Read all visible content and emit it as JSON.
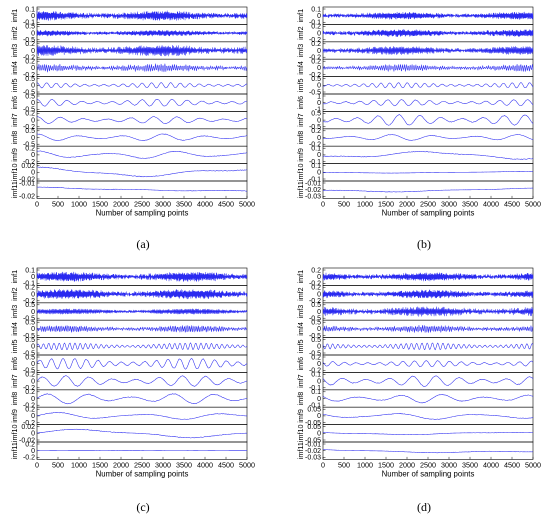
{
  "chart_data": [
    {
      "type": "line",
      "caption": "(a)",
      "xlabel": "Number of sampling points",
      "xlim": [
        0,
        5000
      ],
      "xticks": [
        0,
        500,
        1000,
        1500,
        2000,
        2500,
        3000,
        3500,
        4000,
        4500,
        5000
      ],
      "series": [
        {
          "name": "imf1",
          "yticks": [
            "0.1",
            "0",
            "-0.1"
          ],
          "ylim": [
            -0.1,
            0.1
          ],
          "amplitude": 0.04,
          "periods": 900
        },
        {
          "name": "imf2",
          "yticks": [
            "0.5",
            "0",
            "-0.5"
          ],
          "ylim": [
            -0.5,
            0.5
          ],
          "amplitude": 0.12,
          "periods": 450
        },
        {
          "name": "imf3",
          "yticks": [
            "0.2",
            "0",
            "-0.2"
          ],
          "ylim": [
            -0.2,
            0.2
          ],
          "amplitude": 0.09,
          "periods": 220
        },
        {
          "name": "imf4",
          "yticks": [
            "0.2",
            "0",
            "-0.2"
          ],
          "ylim": [
            -0.2,
            0.2
          ],
          "amplitude": 0.07,
          "periods": 110
        },
        {
          "name": "imf5",
          "yticks": [
            "0.5",
            "0",
            "-0.5"
          ],
          "ylim": [
            -0.5,
            0.5
          ],
          "amplitude": 0.15,
          "periods": 22
        },
        {
          "name": "imf6",
          "yticks": [
            "0.5",
            "0",
            "-0.5"
          ],
          "ylim": [
            -0.5,
            0.5
          ],
          "amplitude": 0.2,
          "periods": 14
        },
        {
          "name": "imf7",
          "yticks": [
            "0.2",
            "0",
            "-0.2"
          ],
          "ylim": [
            -0.2,
            0.2
          ],
          "amplitude": 0.08,
          "periods": 9
        },
        {
          "name": "imf8",
          "yticks": [
            "0.5",
            "0",
            "-0.5"
          ],
          "ylim": [
            -0.5,
            0.5
          ],
          "amplitude": 0.2,
          "periods": 5
        },
        {
          "name": "imf9",
          "yticks": [
            "0.2",
            "0",
            "-0.2"
          ],
          "ylim": [
            -0.2,
            0.2
          ],
          "amplitude": 0.09,
          "periods": 3
        },
        {
          "name": "imf10",
          "yticks": [
            "0.02",
            "0",
            "-0.02"
          ],
          "ylim": [
            -0.02,
            0.02
          ],
          "amplitude": 0.012,
          "periods": 1.1
        },
        {
          "name": "imf11",
          "yticks": [
            "-0.01",
            "-0.02"
          ],
          "ylim": [
            -0.025,
            -0.005
          ],
          "amplitude": 0.003,
          "periods": 0.5,
          "offset": -0.015
        }
      ]
    },
    {
      "type": "line",
      "caption": "(b)",
      "xlabel": "Number of sampling points",
      "xlim": [
        0,
        5000
      ],
      "xticks": [
        0,
        500,
        1000,
        1500,
        2000,
        2500,
        3000,
        3500,
        4000,
        4500,
        5000
      ],
      "series": [
        {
          "name": "imf1",
          "yticks": [
            "0.1",
            "0",
            "-0.1"
          ],
          "ylim": [
            -0.1,
            0.1
          ],
          "amplitude": 0.03,
          "periods": 900
        },
        {
          "name": "imf2",
          "yticks": [
            "0.2",
            "0",
            "-0.2"
          ],
          "ylim": [
            -0.2,
            0.2
          ],
          "amplitude": 0.06,
          "periods": 450
        },
        {
          "name": "imf3",
          "yticks": [
            "0.2",
            "0",
            "-0.2"
          ],
          "ylim": [
            -0.2,
            0.2
          ],
          "amplitude": 0.07,
          "periods": 220
        },
        {
          "name": "imf4",
          "yticks": [
            "0.2",
            "0",
            "-0.2"
          ],
          "ylim": [
            -0.2,
            0.2
          ],
          "amplitude": 0.06,
          "periods": 110
        },
        {
          "name": "imf5",
          "yticks": [
            "0.5",
            "0",
            "-0.5"
          ],
          "ylim": [
            -0.5,
            0.5
          ],
          "amplitude": 0.15,
          "periods": 24
        },
        {
          "name": "imf6",
          "yticks": [
            "1",
            "0",
            "-1"
          ],
          "ylim": [
            -1,
            1
          ],
          "amplitude": 0.35,
          "periods": 15
        },
        {
          "name": "imf7",
          "yticks": [
            "0.5",
            "0",
            "-0.5"
          ],
          "ylim": [
            -0.5,
            0.5
          ],
          "amplitude": 0.3,
          "periods": 10
        },
        {
          "name": "imf8",
          "yticks": [
            "0.2",
            "0",
            "-0.2"
          ],
          "ylim": [
            -0.2,
            0.2
          ],
          "amplitude": 0.07,
          "periods": 5
        },
        {
          "name": "imf9",
          "yticks": [
            "0.1",
            "0",
            "-0.1"
          ],
          "ylim": [
            -0.1,
            0.1
          ],
          "amplitude": 0.05,
          "periods": 1.2
        },
        {
          "name": "imf10",
          "yticks": [
            "0.1",
            "0",
            "-0.1"
          ],
          "ylim": [
            -0.1,
            0.1
          ],
          "amplitude": 0.01,
          "periods": 0.6
        },
        {
          "name": "imf11",
          "yticks": [
            "-0.01",
            "-0.02",
            "-0.03"
          ],
          "ylim": [
            -0.035,
            -0.005
          ],
          "amplitude": 0.004,
          "periods": 0.5,
          "offset": -0.02
        }
      ]
    },
    {
      "type": "line",
      "caption": "(c)",
      "xlabel": "Number of sampling points",
      "xlim": [
        0,
        5000
      ],
      "xticks": [
        0,
        500,
        1000,
        1500,
        2000,
        2500,
        3000,
        3500,
        4000,
        4500,
        5000
      ],
      "series": [
        {
          "name": "imf1",
          "yticks": [
            "0.1",
            "0",
            "-0.1"
          ],
          "ylim": [
            -0.1,
            0.1
          ],
          "amplitude": 0.04,
          "periods": 900
        },
        {
          "name": "imf2",
          "yticks": [
            "0.2",
            "0",
            "-0.2"
          ],
          "ylim": [
            -0.2,
            0.2
          ],
          "amplitude": 0.08,
          "periods": 450
        },
        {
          "name": "imf3",
          "yticks": [
            "0.5",
            "0",
            "-0.5"
          ],
          "ylim": [
            -0.5,
            0.5
          ],
          "amplitude": 0.12,
          "periods": 220
        },
        {
          "name": "imf4",
          "yticks": [
            "0.5",
            "0",
            "-0.5"
          ],
          "ylim": [
            -0.5,
            0.5
          ],
          "amplitude": 0.15,
          "periods": 120
        },
        {
          "name": "imf5",
          "yticks": [
            "0.5",
            "0",
            "-0.5"
          ],
          "ylim": [
            -0.5,
            0.5
          ],
          "amplitude": 0.2,
          "periods": 40
        },
        {
          "name": "imf6",
          "yticks": [
            "0.5",
            "0",
            "-0.5"
          ],
          "ylim": [
            -0.5,
            0.5
          ],
          "amplitude": 0.3,
          "periods": 18
        },
        {
          "name": "imf7",
          "yticks": [
            "0.2",
            "0",
            "-0.2"
          ],
          "ylim": [
            -0.2,
            0.2
          ],
          "amplitude": 0.12,
          "periods": 9
        },
        {
          "name": "imf8",
          "yticks": [
            "0.2",
            "0",
            "-0.2"
          ],
          "ylim": [
            -0.2,
            0.2
          ],
          "amplitude": 0.12,
          "periods": 5
        },
        {
          "name": "imf9",
          "yticks": [
            "0.2",
            "0",
            "-0.2"
          ],
          "ylim": [
            -0.2,
            0.2
          ],
          "amplitude": 0.08,
          "periods": 2.5
        },
        {
          "name": "imf10",
          "yticks": [
            "0.02",
            "0",
            "-0.02"
          ],
          "ylim": [
            -0.02,
            0.02
          ],
          "amplitude": 0.01,
          "periods": 1
        },
        {
          "name": "imf11",
          "yticks": [
            "0.2",
            "0",
            "-0.2"
          ],
          "ylim": [
            -0.2,
            0.2
          ],
          "amplitude": 0.01,
          "periods": 0.5
        }
      ]
    },
    {
      "type": "line",
      "caption": "(d)",
      "xlabel": "Number of sampling points",
      "xlim": [
        0,
        5000
      ],
      "xticks": [
        0,
        500,
        1000,
        1500,
        2000,
        2500,
        3000,
        3500,
        4000,
        4500,
        5000
      ],
      "series": [
        {
          "name": "imf1",
          "yticks": [
            "0.2",
            "0",
            "-0.2"
          ],
          "ylim": [
            -0.2,
            0.2
          ],
          "amplitude": 0.07,
          "periods": 900
        },
        {
          "name": "imf2",
          "yticks": [
            "0.2",
            "0",
            "-0.2"
          ],
          "ylim": [
            -0.2,
            0.2
          ],
          "amplitude": 0.07,
          "periods": 450
        },
        {
          "name": "imf3",
          "yticks": [
            "0.5",
            "0",
            "-0.5"
          ],
          "ylim": [
            -0.5,
            0.5
          ],
          "amplitude": 0.2,
          "periods": 220
        },
        {
          "name": "imf4",
          "yticks": [
            "0.5",
            "0",
            "-0.5"
          ],
          "ylim": [
            -0.5,
            0.5
          ],
          "amplitude": 0.15,
          "periods": 120
        },
        {
          "name": "imf5",
          "yticks": [
            "0.5",
            "0",
            "-0.5"
          ],
          "ylim": [
            -0.5,
            0.5
          ],
          "amplitude": 0.2,
          "periods": 40
        },
        {
          "name": "imf6",
          "yticks": [
            "0.2",
            "0",
            "-0.2"
          ],
          "ylim": [
            -0.2,
            0.2
          ],
          "amplitude": 0.07,
          "periods": 18
        },
        {
          "name": "imf7",
          "yticks": [
            "0.1",
            "0",
            "-0.1"
          ],
          "ylim": [
            -0.1,
            0.1
          ],
          "amplitude": 0.06,
          "periods": 9
        },
        {
          "name": "imf8",
          "yticks": [
            "0.1",
            "0",
            "-0.1"
          ],
          "ylim": [
            -0.1,
            0.1
          ],
          "amplitude": 0.05,
          "periods": 5
        },
        {
          "name": "imf9",
          "yticks": [
            "0.05",
            "0",
            "-0.05"
          ],
          "ylim": [
            -0.05,
            0.05
          ],
          "amplitude": 0.02,
          "periods": 2.5
        },
        {
          "name": "imf10",
          "yticks": [
            "0.05",
            "0",
            "-0.05"
          ],
          "ylim": [
            -0.05,
            0.05
          ],
          "amplitude": 0.01,
          "periods": 1
        },
        {
          "name": "imf11",
          "yticks": [
            "-0.01",
            "-0.02",
            "-0.03"
          ],
          "ylim": [
            -0.035,
            -0.005
          ],
          "amplitude": 0.004,
          "periods": 0.5,
          "offset": -0.02
        }
      ]
    }
  ]
}
